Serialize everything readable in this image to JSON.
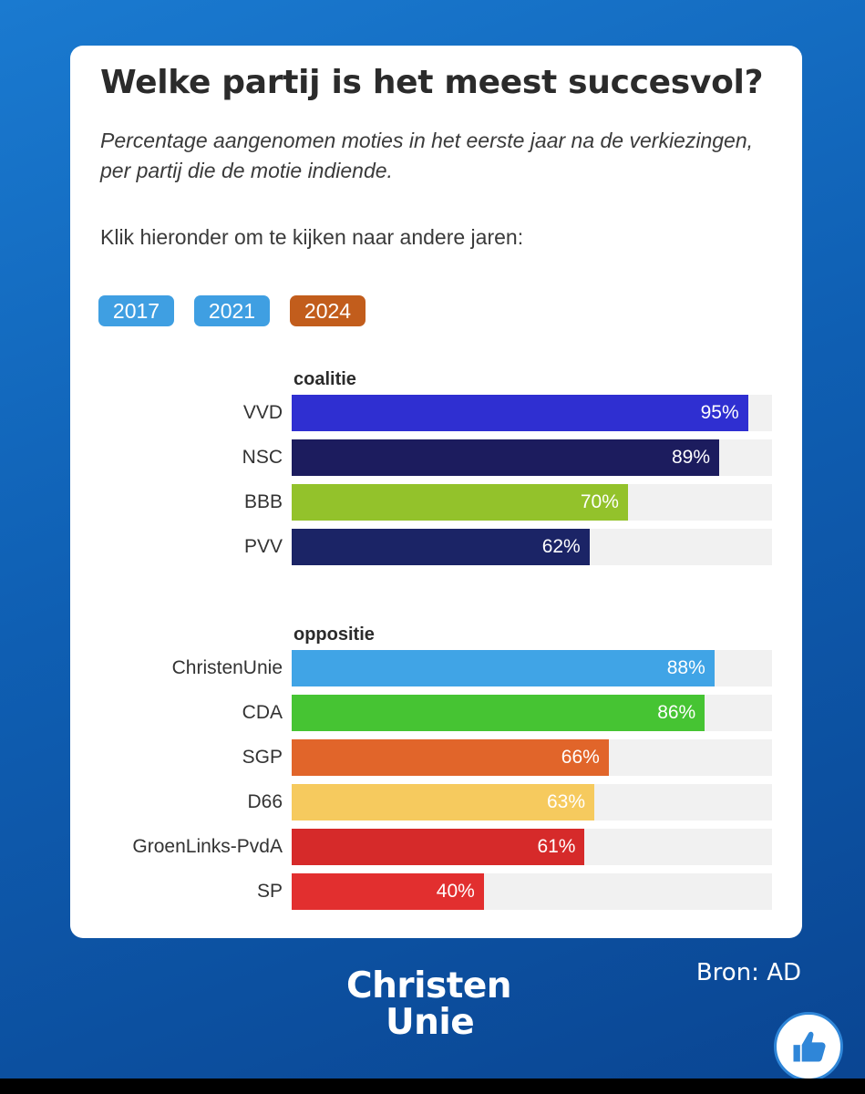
{
  "title": "Welke partij is het meest succesvol?",
  "subtitle": "Percentage aangenomen moties in het eerste jaar na de verkiezingen, per partij die de motie indiende.",
  "instruction": "Klik hieronder om te kijken naar andere jaren:",
  "year_buttons": [
    {
      "label": "2017",
      "color": "#3f9fe2"
    },
    {
      "label": "2021",
      "color": "#3f9fe2"
    },
    {
      "label": "2024",
      "color": "#c25d1c"
    }
  ],
  "chart_data": {
    "type": "bar",
    "orientation": "horizontal",
    "xlim": [
      0,
      100
    ],
    "unit": "%",
    "groups": [
      {
        "name": "coalitie",
        "categories": [
          "VVD",
          "NSC",
          "BBB",
          "PVV"
        ],
        "values": [
          95,
          89,
          70,
          62
        ],
        "labels": [
          "95%",
          "89%",
          "70%",
          "62%"
        ],
        "colors": [
          "#2f2fd1",
          "#1c1c5e",
          "#93c22b",
          "#1b2466"
        ]
      },
      {
        "name": "oppositie",
        "categories": [
          "ChristenUnie",
          "CDA",
          "SGP",
          "D66",
          "GroenLinks-PvdA",
          "SP"
        ],
        "values": [
          88,
          86,
          66,
          63,
          61,
          40
        ],
        "labels": [
          "88%",
          "86%",
          "66%",
          "63%",
          "61%",
          "40%"
        ],
        "colors": [
          "#40a4e6",
          "#46c433",
          "#e1652a",
          "#f6ca5e",
          "#d62a2a",
          "#e22f2f"
        ]
      }
    ]
  },
  "logo": {
    "line1": "Christen",
    "line2": "Unie"
  },
  "source": "Bron: AD",
  "like_icon": "thumbs-up-icon"
}
